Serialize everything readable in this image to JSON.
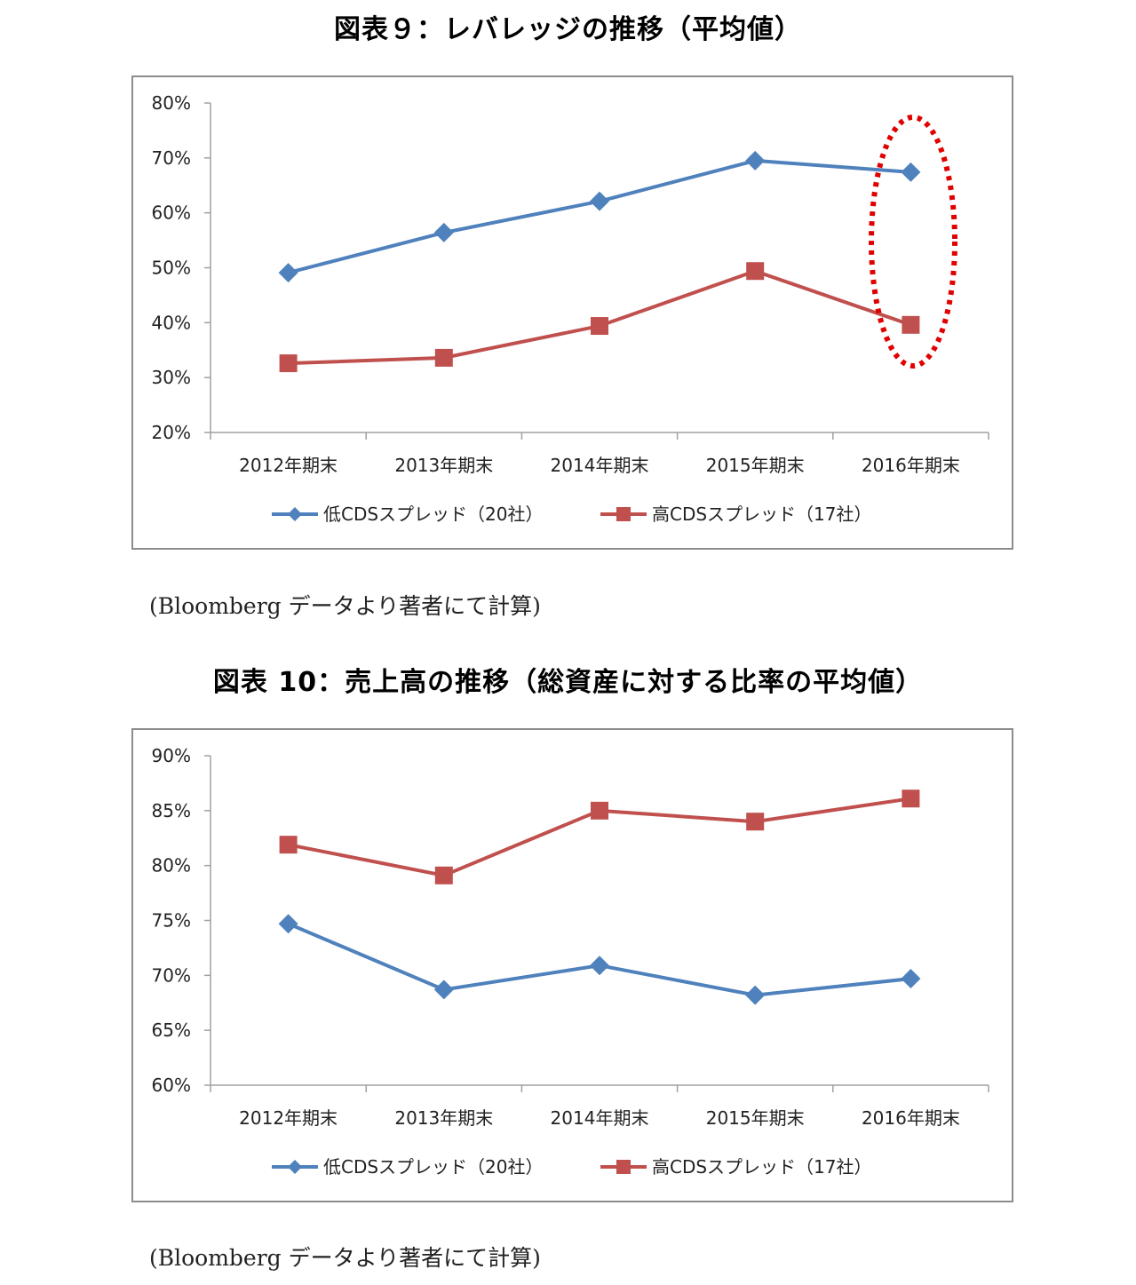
{
  "figures": [
    {
      "title": "図表９：レバレッジの推移（平均値）",
      "source": "(Bloomberg データより著者にて計算)",
      "y_ticks": [
        "80%",
        "70%",
        "60%",
        "50%",
        "40%",
        "30%",
        "20%"
      ],
      "x_labels": [
        "2012年期末",
        "2013年期末",
        "2014年期末",
        "2015年期末",
        "2016年期末"
      ],
      "legend": [
        "低CDSスプレッド（20社）",
        "高CDSスプレッド（17社）"
      ]
    },
    {
      "title": "図表 10：売上高の推移（総資産に対する比率の平均値）",
      "source": "(Bloomberg データより著者にて計算)",
      "y_ticks": [
        "90%",
        "85%",
        "80%",
        "75%",
        "70%",
        "65%",
        "60%"
      ],
      "x_labels": [
        "2012年期末",
        "2013年期末",
        "2014年期末",
        "2015年期末",
        "2016年期末"
      ],
      "legend": [
        "低CDSスプレッド（20社）",
        "高CDSスプレッド（17社）"
      ]
    }
  ],
  "colors": {
    "low_cds": "#4f81bd",
    "high_cds": "#c0504d",
    "highlight": "#e00000",
    "axis": "#a0a0a0",
    "frame": "#8c8c8c"
  },
  "chart_data": [
    {
      "type": "line",
      "title": "図表９：レバレッジの推移（平均値）",
      "categories": [
        "2012年期末",
        "2013年期末",
        "2014年期末",
        "2015年期末",
        "2016年期末"
      ],
      "series": [
        {
          "name": "低CDSスプレッド（20社）",
          "marker": "diamond",
          "color": "#4f81bd",
          "values": [
            49.1,
            56.4,
            62.1,
            69.5,
            67.4
          ]
        },
        {
          "name": "高CDSスプレッド（17社）",
          "marker": "square",
          "color": "#c0504d",
          "values": [
            32.6,
            33.6,
            39.4,
            49.4,
            39.6
          ]
        }
      ],
      "xlabel": "",
      "ylabel": "",
      "ylim": [
        20,
        80
      ],
      "yticks": [
        20,
        30,
        40,
        50,
        60,
        70,
        80
      ],
      "y_format": "percent",
      "grid": false,
      "legend_position": "bottom",
      "annotations": [
        "Red dotted ellipse highlighting 2016年期末 values"
      ]
    },
    {
      "type": "line",
      "title": "図表 10：売上高の推移（総資産に対する比率の平均値）",
      "categories": [
        "2012年期末",
        "2013年期末",
        "2014年期末",
        "2015年期末",
        "2016年期末"
      ],
      "series": [
        {
          "name": "低CDSスプレッド（20社）",
          "marker": "diamond",
          "color": "#4f81bd",
          "values": [
            74.7,
            68.7,
            70.9,
            68.2,
            69.7
          ]
        },
        {
          "name": "高CDSスプレッド（17社）",
          "marker": "square",
          "color": "#c0504d",
          "values": [
            81.9,
            79.1,
            85.0,
            84.0,
            86.1
          ]
        }
      ],
      "xlabel": "",
      "ylabel": "",
      "ylim": [
        60,
        90
      ],
      "yticks": [
        60,
        65,
        70,
        75,
        80,
        85,
        90
      ],
      "y_format": "percent",
      "grid": false,
      "legend_position": "bottom"
    }
  ]
}
